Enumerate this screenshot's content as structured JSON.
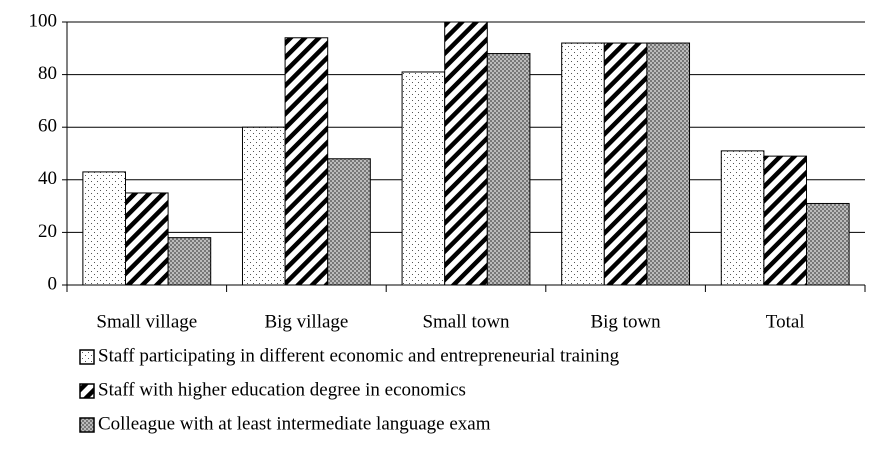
{
  "chart_data": {
    "type": "bar",
    "categories": [
      "Small village",
      "Big village",
      "Small town",
      "Big town",
      "Total"
    ],
    "series": [
      {
        "name": "Staff participating in different economic and entrepreneurial training",
        "pattern": "dots",
        "values": [
          43,
          60,
          81,
          92,
          51
        ]
      },
      {
        "name": "Staff with higher education degree in economics",
        "pattern": "hatch",
        "values": [
          35,
          94,
          100,
          92,
          49
        ]
      },
      {
        "name": "Colleague with at least intermediate language exam",
        "pattern": "checker",
        "values": [
          18,
          48,
          88,
          92,
          31
        ]
      }
    ],
    "ylim": [
      0,
      100
    ],
    "yticks": [
      0,
      20,
      40,
      60,
      80,
      100
    ],
    "grid": true,
    "legend": "bottom-left"
  }
}
